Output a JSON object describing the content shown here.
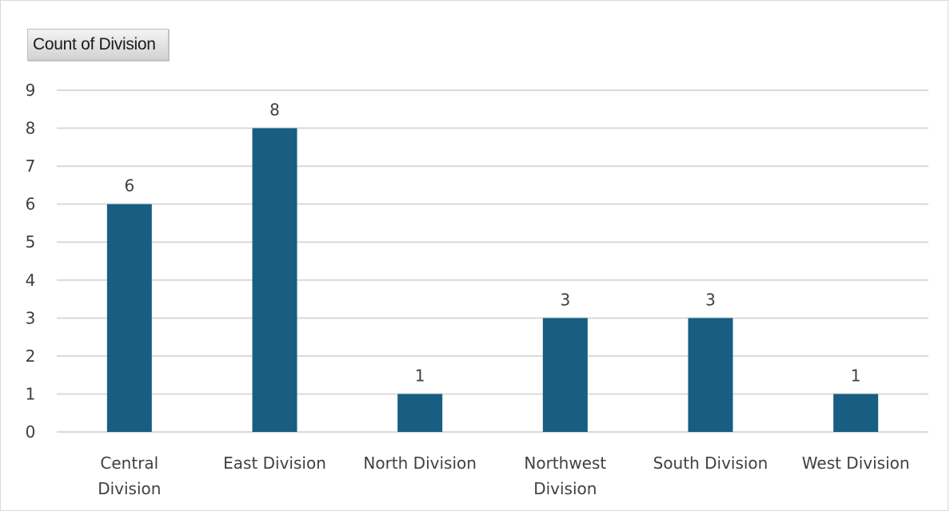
{
  "field_button": {
    "label": "Count of Division"
  },
  "colors": {
    "bar": "#175e82",
    "grid": "#d9d9d9",
    "text": "#404040"
  },
  "chart_data": {
    "type": "bar",
    "categories": [
      "Central Division",
      "East Division",
      "North Division",
      "Northwest Division",
      "South Division",
      "West Division"
    ],
    "category_lines": [
      [
        "Central",
        "Division"
      ],
      [
        "East Division"
      ],
      [
        "North Division"
      ],
      [
        "Northwest",
        "Division"
      ],
      [
        "South Division"
      ],
      [
        "West Division"
      ]
    ],
    "series": [
      {
        "values": [
          6,
          8,
          1,
          3,
          3,
          1
        ]
      }
    ],
    "data_labels": [
      "6",
      "8",
      "1",
      "3",
      "3",
      "1"
    ],
    "y_ticks": [
      "0",
      "1",
      "2",
      "3",
      "4",
      "5",
      "6",
      "7",
      "8",
      "9"
    ],
    "ylim": [
      0,
      9
    ],
    "grid": true,
    "legend": false,
    "title": "",
    "xlabel": "",
    "ylabel": ""
  }
}
